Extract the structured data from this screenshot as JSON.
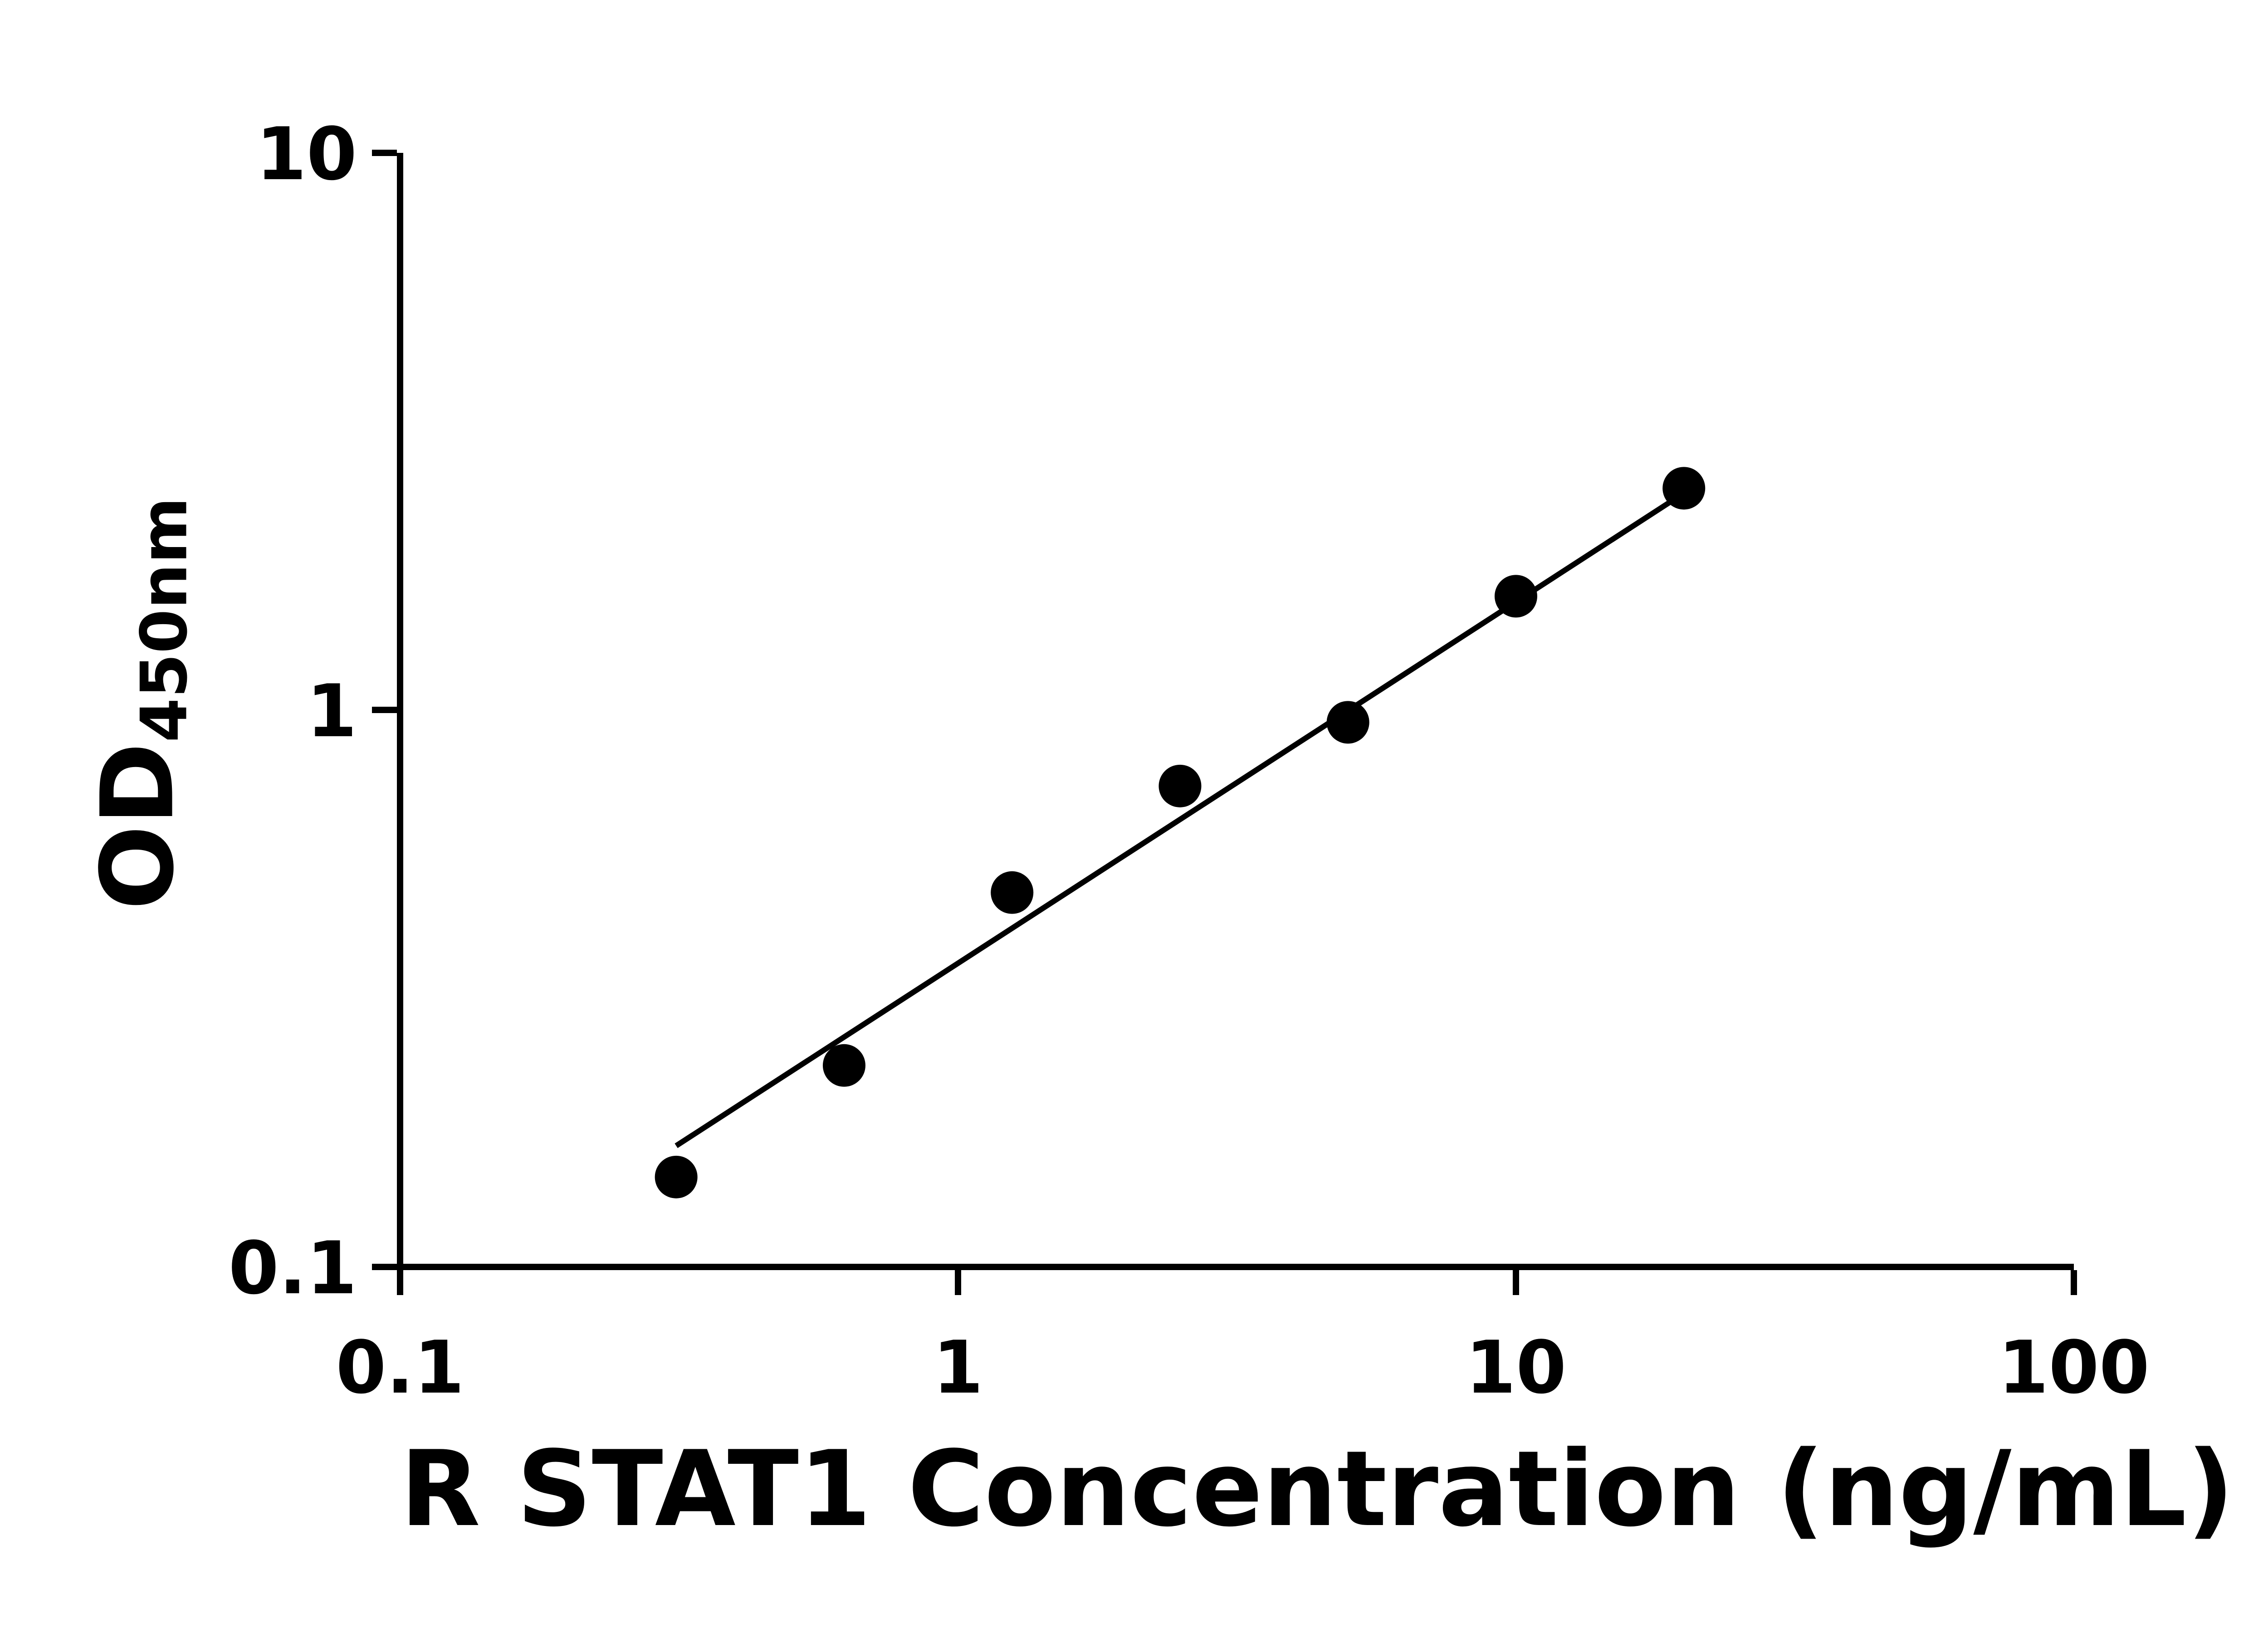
{
  "chart_data": {
    "type": "scatter",
    "title": "",
    "xlabel": "R STAT1 Concentration (ng/mL)",
    "ylabel_main": "OD",
    "ylabel_sub": "450nm",
    "xscale": "log",
    "yscale": "log",
    "xlim": [
      0.1,
      100
    ],
    "ylim": [
      0.1,
      10
    ],
    "x_ticks": [
      0.1,
      1,
      10,
      100
    ],
    "x_tick_labels": [
      "0.1",
      "1",
      "10",
      "100"
    ],
    "y_ticks": [
      0.1,
      1,
      10
    ],
    "y_tick_labels": [
      "0.1",
      "1",
      "10"
    ],
    "grid": false,
    "legend": false,
    "marker_color": "#000000",
    "line_color": "#000000",
    "x": [
      0.3125,
      0.625,
      1.25,
      2.5,
      5,
      10,
      20
    ],
    "y": [
      0.145,
      0.23,
      0.47,
      0.73,
      0.95,
      1.6,
      2.5
    ],
    "trend_line": {
      "x1": 0.3125,
      "y1": 0.165,
      "x2": 20,
      "y2": 2.45
    }
  }
}
